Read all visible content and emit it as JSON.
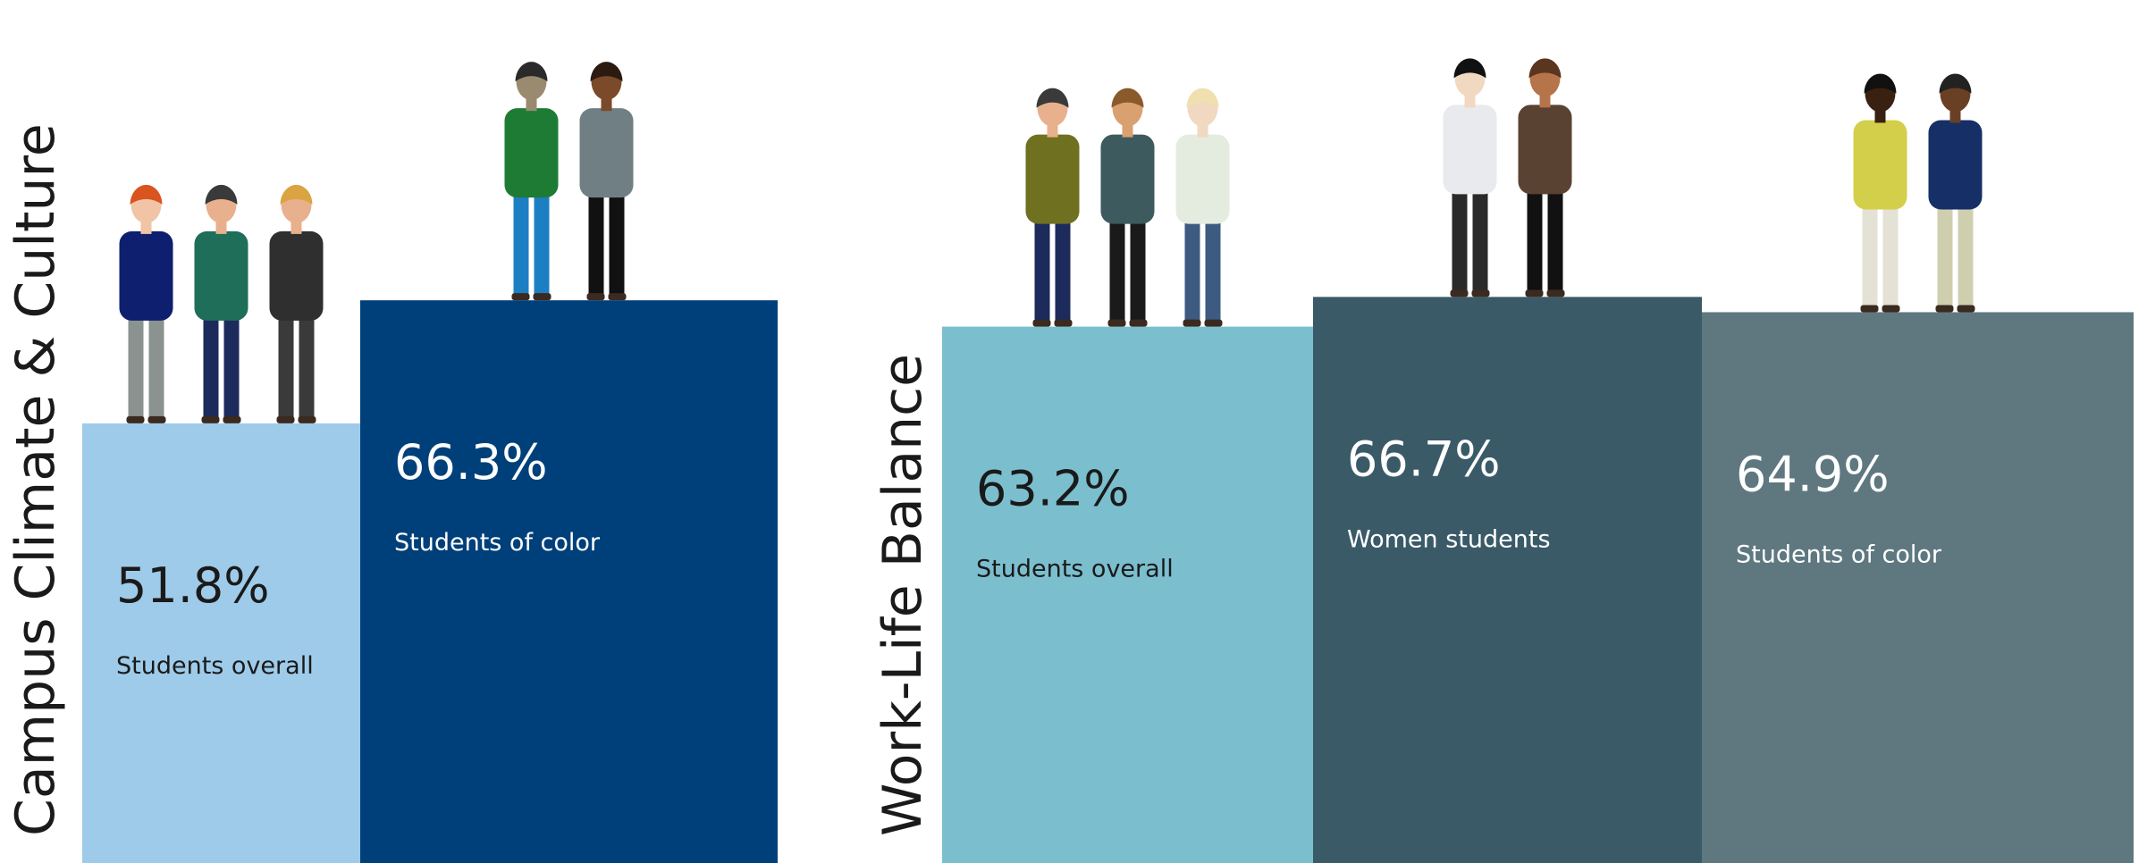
{
  "chart_data": [
    {
      "type": "bar",
      "title": "Campus Climate & Culture",
      "categories": [
        "Students overall",
        "Students of color"
      ],
      "values": [
        51.8,
        66.3
      ],
      "value_labels": [
        "51.8%",
        "66.3%"
      ],
      "colors": [
        "#9ecbe9",
        "#00407a"
      ]
    },
    {
      "type": "bar",
      "title": "Work-Life Balance",
      "categories": [
        "Students overall",
        "Women students",
        "Students of color"
      ],
      "values": [
        63.2,
        66.7,
        64.9
      ],
      "value_labels": [
        "63.2%",
        "66.7%",
        "64.9%"
      ],
      "colors": [
        "#7bbfcf",
        "#3a5a68",
        "#5f7880"
      ]
    }
  ]
}
